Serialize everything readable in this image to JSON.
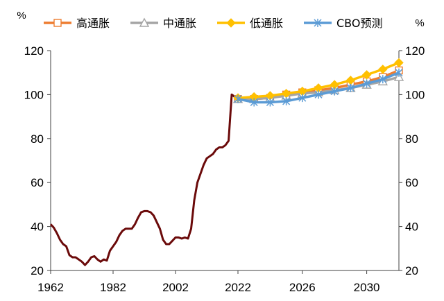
{
  "chart_data": {
    "type": "line",
    "left_unit": "%",
    "right_unit": "%",
    "ylim": [
      20,
      120
    ],
    "y_ticks": [
      20,
      40,
      60,
      80,
      100,
      120
    ],
    "y_tick_labels": [
      "20",
      "40",
      "60",
      "80",
      "100",
      "120"
    ],
    "xlim": [
      1962,
      2032
    ],
    "x_ticks": [
      1962,
      1982,
      2002,
      2022
    ],
    "x_tick_labels": [
      "1962",
      "1982",
      "2002",
      "2022"
    ],
    "x_ticks_forecast": [
      2022,
      2026,
      2030
    ],
    "x_tick_labels_forecast": [
      "2022",
      "2026",
      "2030"
    ],
    "grid": false,
    "legend_position": "top",
    "historical": {
      "color": "#6b0a0a",
      "x": [
        1962,
        1963,
        1964,
        1965,
        1966,
        1967,
        1968,
        1969,
        1970,
        1971,
        1972,
        1973,
        1974,
        1975,
        1976,
        1977,
        1978,
        1979,
        1980,
        1981,
        1982,
        1983,
        1984,
        1985,
        1986,
        1987,
        1988,
        1989,
        1990,
        1991,
        1992,
        1993,
        1994,
        1995,
        1996,
        1997,
        1998,
        1999,
        2000,
        2001,
        2002,
        2003,
        2004,
        2005,
        2006,
        2007,
        2008,
        2009,
        2010,
        2011,
        2012,
        2013,
        2014,
        2015,
        2016,
        2017,
        2018,
        2019,
        2020,
        2021
      ],
      "values": [
        41,
        39.5,
        37,
        34,
        32,
        31,
        27,
        26,
        26,
        25,
        24,
        22.5,
        24,
        26,
        26.5,
        25,
        24,
        25,
        24.5,
        29,
        31,
        33,
        36,
        38,
        39,
        39,
        39,
        41,
        44,
        46.5,
        47,
        47,
        46.5,
        45,
        42,
        39,
        34,
        32,
        32,
        33.5,
        35,
        35,
        34.5,
        35,
        34.5,
        39,
        52,
        60,
        64,
        68,
        71,
        72,
        73,
        75,
        76,
        76,
        77,
        79,
        100,
        99
      ]
    },
    "x_forecast": [
      2022,
      2023,
      2024,
      2025,
      2026,
      2027,
      2028,
      2029,
      2030,
      2031,
      2032
    ],
    "series": [
      {
        "name": "高通胀",
        "color": "#ed7d31",
        "marker": "square",
        "values": [
          98,
          98,
          98.5,
          100,
          101,
          102,
          103,
          104.5,
          106,
          108,
          111
        ]
      },
      {
        "name": "中通胀",
        "color": "#a5a5a5",
        "marker": "triangle",
        "values": [
          98,
          98,
          98.5,
          99.5,
          100.5,
          101,
          102,
          103,
          104.5,
          106,
          108
        ]
      },
      {
        "name": "低通胀",
        "color": "#ffc000",
        "marker": "diamond",
        "values": [
          98.5,
          99,
          99.5,
          100.5,
          101.5,
          103,
          104.5,
          106.5,
          109,
          111.5,
          114.5
        ]
      },
      {
        "name": "CBO预测",
        "color": "#5b9bd5",
        "marker": "asterisk",
        "values": [
          98,
          96.5,
          96.5,
          97,
          98.5,
          100,
          101.5,
          103,
          105,
          107,
          110
        ]
      }
    ]
  }
}
